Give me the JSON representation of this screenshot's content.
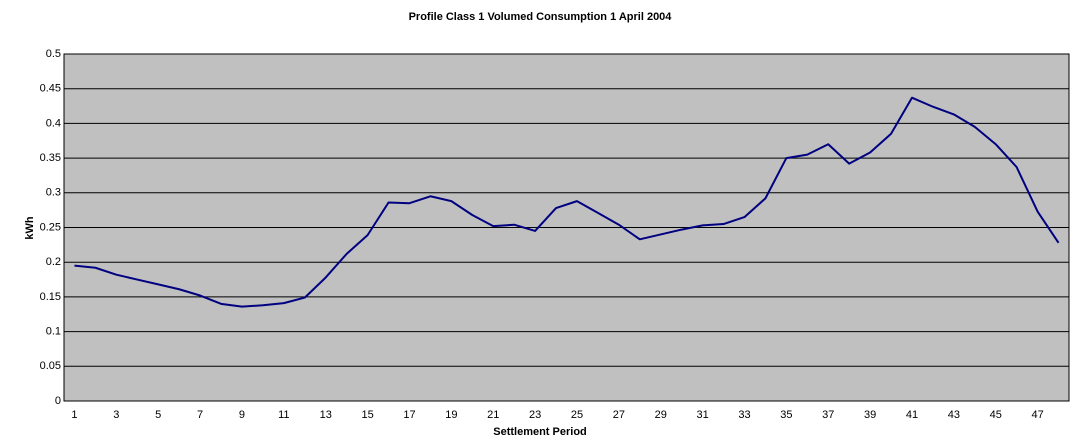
{
  "chart_data": {
    "type": "line",
    "title": "Profile Class 1   Volumed Consumption 1 April 2004",
    "x_label": "Settlement Period",
    "y_label": "kWh",
    "categories": [
      1,
      null,
      3,
      null,
      5,
      null,
      7,
      null,
      9,
      null,
      11,
      null,
      13,
      null,
      15,
      null,
      17,
      null,
      19,
      null,
      21,
      null,
      23,
      null,
      25,
      null,
      27,
      null,
      29,
      null,
      31,
      null,
      33,
      null,
      35,
      null,
      37,
      null,
      39,
      null,
      41,
      null,
      43,
      null,
      45,
      null,
      47,
      null
    ],
    "series": [
      {
        "color": "#000080",
        "values": [
          0.195,
          0.192,
          0.182,
          0.175,
          0.168,
          0.161,
          0.152,
          0.14,
          0.136,
          0.138,
          0.141,
          0.149,
          0.178,
          0.212,
          0.239,
          0.286,
          0.285,
          0.295,
          0.288,
          0.268,
          0.252,
          0.254,
          0.245,
          0.278,
          0.288,
          0.271,
          0.254,
          0.233,
          0.24,
          0.247,
          0.253,
          0.255,
          0.265,
          0.292,
          0.35,
          0.355,
          0.37,
          0.342,
          0.358,
          0.385,
          0.437,
          0.424,
          0.413,
          0.395,
          0.37,
          0.337,
          0.273,
          0.228
        ]
      }
    ],
    "ylim": [
      0,
      0.5
    ],
    "yticks": [
      0,
      0.05,
      0.1,
      0.15,
      0.2,
      0.25,
      0.3,
      0.35,
      0.4,
      0.45,
      0.5
    ],
    "grid": true,
    "plot_background": "#c0c0c0"
  }
}
